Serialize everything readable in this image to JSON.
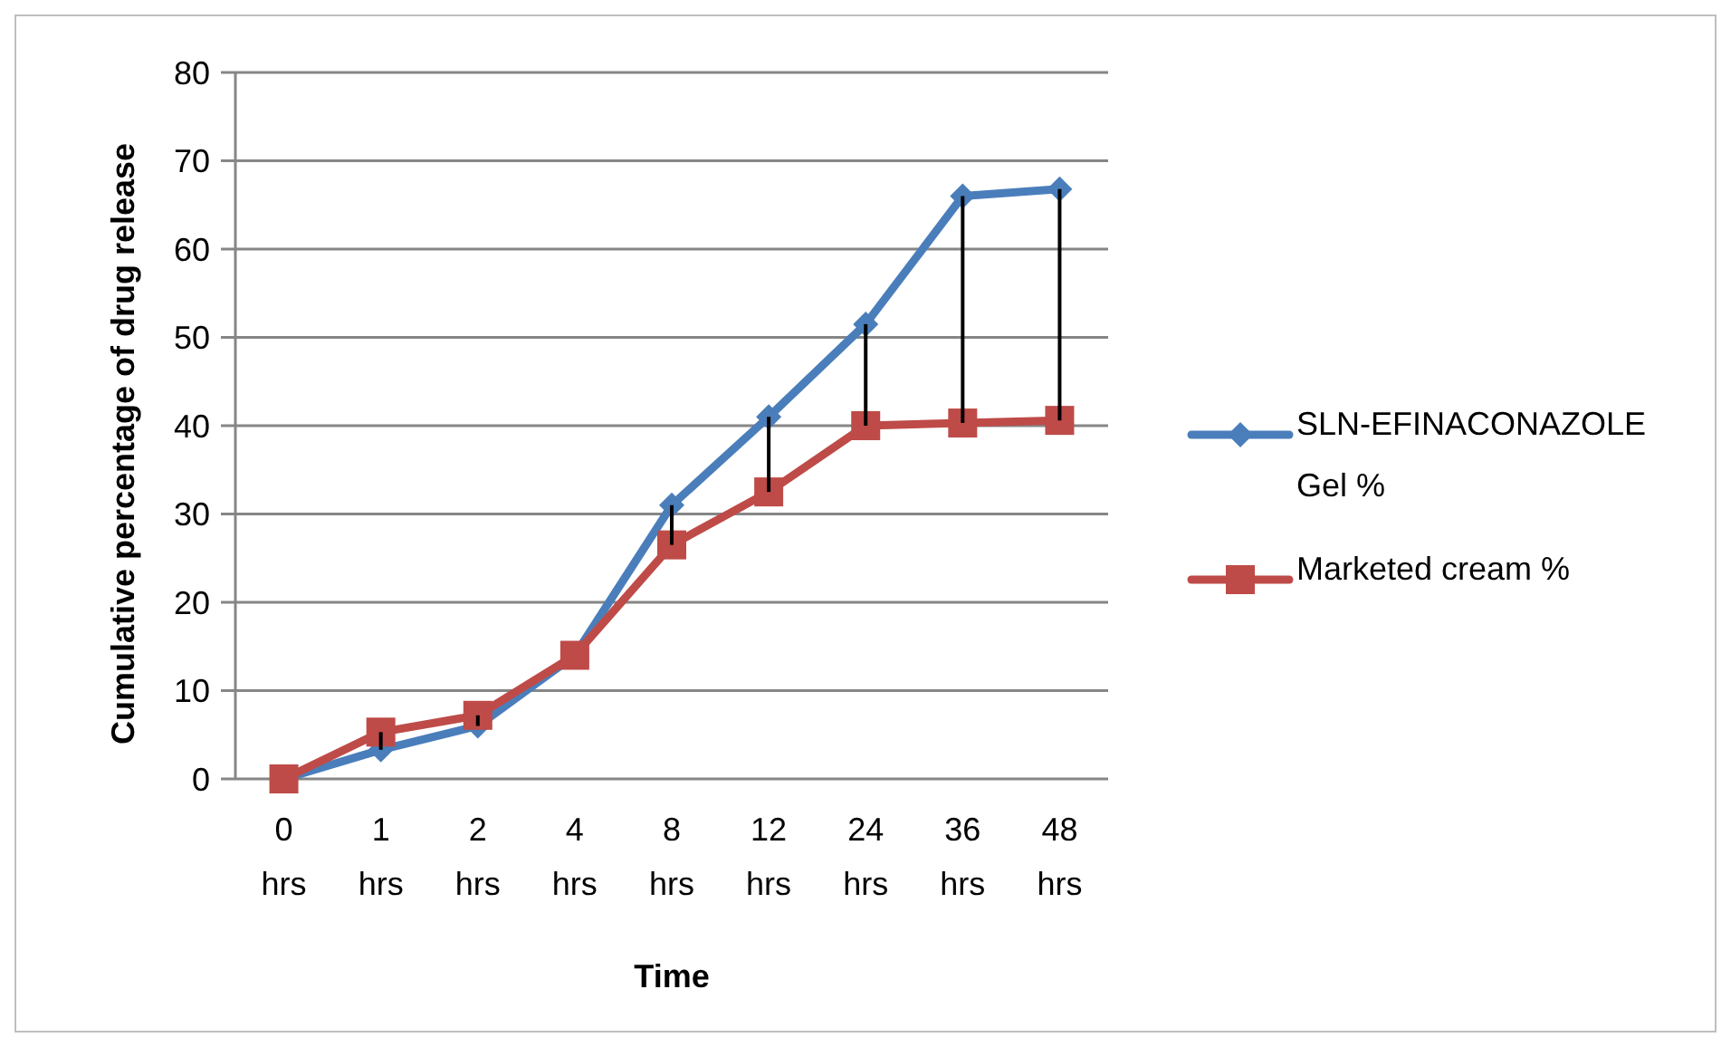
{
  "chart_data": {
    "type": "line",
    "xlabel": "Time",
    "ylabel": "Cumulative percentage of drug release",
    "categories": [
      "0 hrs",
      "1 hrs",
      "2 hrs",
      "4 hrs",
      "8 hrs",
      "12 hrs",
      "24 hrs",
      "36 hrs",
      "48 hrs"
    ],
    "series": [
      {
        "name": "SLN-EFINACONAZOLE Gel %",
        "color": "#4a7ebb",
        "marker": "diamond",
        "values": [
          0,
          3.3,
          6,
          14,
          31,
          41,
          51.5,
          66,
          66.8
        ]
      },
      {
        "name": "Marketed cream %",
        "color": "#be4b48",
        "marker": "square",
        "values": [
          0,
          5.3,
          7.2,
          14,
          26.5,
          32.5,
          40,
          40.3,
          40.6
        ],
        "errors": [
          null,
          [
            3.3,
            5.3
          ],
          [
            6,
            7.2
          ],
          null,
          [
            26.5,
            31
          ],
          [
            32.5,
            41
          ],
          [
            40,
            51.5
          ],
          [
            40.3,
            66
          ],
          [
            40.6,
            66.8
          ]
        ]
      }
    ],
    "ylim": [
      0,
      80
    ],
    "yticks": [
      0,
      10,
      20,
      30,
      40,
      50,
      60,
      70,
      80
    ],
    "grid": "y",
    "legend": "right"
  }
}
